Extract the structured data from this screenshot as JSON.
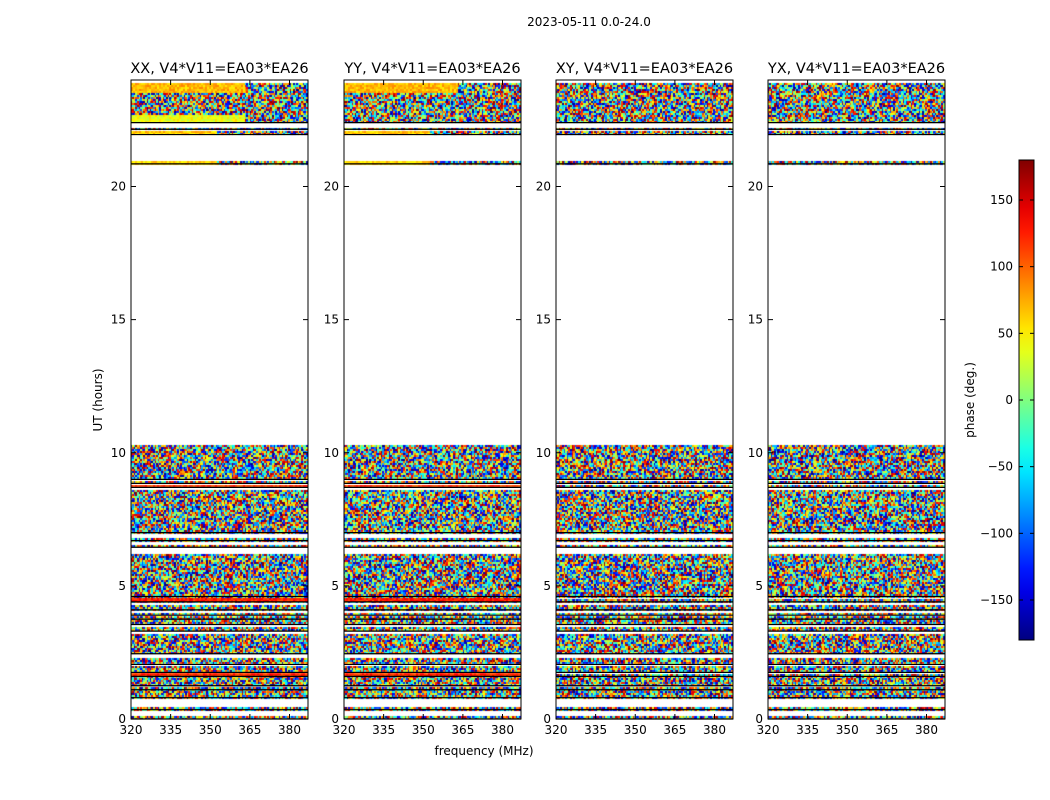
{
  "figure": {
    "suptitle": "2023-05-11 0.0-24.0"
  },
  "chart_data": {
    "type": "heatmap",
    "quantity": "visibility phase",
    "panels": [
      {
        "pol": "XX",
        "title": "XX, V4*V11=EA03*EA26"
      },
      {
        "pol": "YY",
        "title": "YY, V4*V11=EA03*EA26"
      },
      {
        "pol": "XY",
        "title": "XY, V4*V11=EA03*EA26"
      },
      {
        "pol": "YX",
        "title": "YX, V4*V11=EA03*EA26"
      }
    ],
    "xlabel": "frequency (MHz)",
    "ylabel": "UT (hours)",
    "xlim": [
      320,
      387
    ],
    "xticks": [
      320,
      335,
      350,
      365,
      380
    ],
    "ylim": [
      0,
      24
    ],
    "yticks": [
      0,
      5,
      10,
      15,
      20
    ],
    "data_rows_ut_hours": [
      [
        0.0,
        0.1
      ],
      [
        0.35,
        0.45
      ],
      [
        0.8,
        1.05
      ],
      [
        1.1,
        1.2
      ],
      [
        1.25,
        1.6
      ],
      [
        1.6,
        1.7
      ],
      [
        1.75,
        2.0
      ],
      [
        2.05,
        2.3
      ],
      [
        2.45,
        3.2
      ],
      [
        3.3,
        3.45
      ],
      [
        3.55,
        3.7
      ],
      [
        3.75,
        3.85
      ],
      [
        3.9,
        4.0
      ],
      [
        4.1,
        4.3
      ],
      [
        4.4,
        4.5
      ],
      [
        4.6,
        6.2
      ],
      [
        6.45,
        6.55
      ],
      [
        6.7,
        6.8
      ],
      [
        7.0,
        8.6
      ],
      [
        8.7,
        8.8
      ],
      [
        8.85,
        8.95
      ],
      [
        9.0,
        10.3
      ],
      [
        20.85,
        20.95
      ],
      [
        21.95,
        22.1
      ],
      [
        22.15,
        22.2
      ],
      [
        22.4,
        23.9
      ]
    ],
    "coherent_bands": [
      {
        "panels": [
          "XX",
          "YY"
        ],
        "ut": [
          1.6,
          1.72
        ],
        "freq": [
          320,
          387
        ],
        "phase_deg": 120
      },
      {
        "panels": [
          "XX",
          "YY"
        ],
        "ut": [
          8.7,
          8.8
        ],
        "freq": [
          320,
          387
        ],
        "phase_deg": 115
      },
      {
        "panels": [
          "XX",
          "YY"
        ],
        "ut": [
          4.45,
          4.55
        ],
        "freq": [
          320,
          387
        ],
        "phase_deg": 125
      },
      {
        "panels": [
          "XX"
        ],
        "ut": [
          22.4,
          22.7
        ],
        "freq": [
          320,
          363
        ],
        "phase_deg": 40
      },
      {
        "panels": [
          "XX",
          "YY"
        ],
        "ut": [
          23.5,
          23.9
        ],
        "freq": [
          320,
          363
        ],
        "phase_deg": 70
      },
      {
        "panels": [
          "XX",
          "YY"
        ],
        "ut": [
          20.85,
          20.95
        ],
        "freq": [
          320,
          352
        ],
        "phase_deg": 60
      },
      {
        "panels": [
          "XX",
          "YY"
        ],
        "ut": [
          21.95,
          22.1
        ],
        "freq": [
          320,
          352
        ],
        "phase_deg": 65
      }
    ],
    "colorbar": {
      "label": "phase (deg.)",
      "range": [
        -180,
        180
      ],
      "ticks": [
        -150,
        -100,
        -50,
        0,
        50,
        100,
        150
      ],
      "tick_labels": [
        "−150",
        "−100",
        "−50",
        "0",
        "50",
        "100",
        "150"
      ],
      "colormap": "jet"
    }
  },
  "colors": {
    "axes": "#000000",
    "background": "#ffffff"
  }
}
